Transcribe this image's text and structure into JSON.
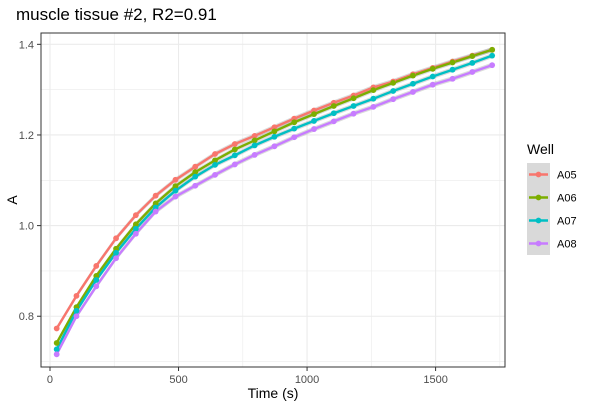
{
  "chart_data": {
    "type": "line",
    "title": "muscle tissue #2, R2=0.91",
    "xlabel": "Time (s)",
    "ylabel": "A",
    "xlim": [
      -35,
      1770
    ],
    "ylim": [
      0.688,
      1.425
    ],
    "xticks": [
      0,
      500,
      1000,
      1500
    ],
    "xtick_labels": [
      "0",
      "500",
      "1000",
      "1500"
    ],
    "yticks": [
      0.8,
      1.0,
      1.2,
      1.4
    ],
    "ytick_labels": [
      "0.8",
      "1.0",
      "1.2",
      "1.4"
    ],
    "grid": true,
    "legend": {
      "title": "Well",
      "position": "right"
    },
    "x": [
      26,
      103,
      180,
      257,
      334,
      411,
      488,
      565,
      642,
      719,
      796,
      873,
      950,
      1027,
      1104,
      1181,
      1258,
      1335,
      1412,
      1489,
      1566,
      1643,
      1720
    ],
    "series": [
      {
        "name": "A05",
        "color": "#F8766D",
        "values": [
          0.773,
          0.845,
          0.911,
          0.972,
          1.023,
          1.066,
          1.101,
          1.13,
          1.158,
          1.18,
          1.198,
          1.217,
          1.236,
          1.254,
          1.271,
          1.287,
          1.305,
          1.318,
          1.334,
          1.348,
          1.362,
          1.375,
          1.388
        ]
      },
      {
        "name": "A06",
        "color": "#7CAE00",
        "values": [
          0.741,
          0.82,
          0.889,
          0.949,
          1.003,
          1.049,
          1.087,
          1.118,
          1.144,
          1.168,
          1.188,
          1.208,
          1.228,
          1.246,
          1.264,
          1.281,
          1.299,
          1.315,
          1.331,
          1.346,
          1.36,
          1.374,
          1.388
        ]
      },
      {
        "name": "A07",
        "color": "#00BFC4",
        "values": [
          0.727,
          0.812,
          0.88,
          0.94,
          0.993,
          1.04,
          1.077,
          1.108,
          1.134,
          1.155,
          1.177,
          1.196,
          1.214,
          1.231,
          1.248,
          1.264,
          1.28,
          1.297,
          1.313,
          1.329,
          1.344,
          1.359,
          1.375
        ]
      },
      {
        "name": "A08",
        "color": "#C77CFF",
        "values": [
          0.716,
          0.8,
          0.866,
          0.928,
          0.982,
          1.031,
          1.064,
          1.088,
          1.112,
          1.135,
          1.156,
          1.175,
          1.195,
          1.213,
          1.23,
          1.247,
          1.262,
          1.279,
          1.295,
          1.311,
          1.324,
          1.339,
          1.354
        ]
      }
    ]
  }
}
